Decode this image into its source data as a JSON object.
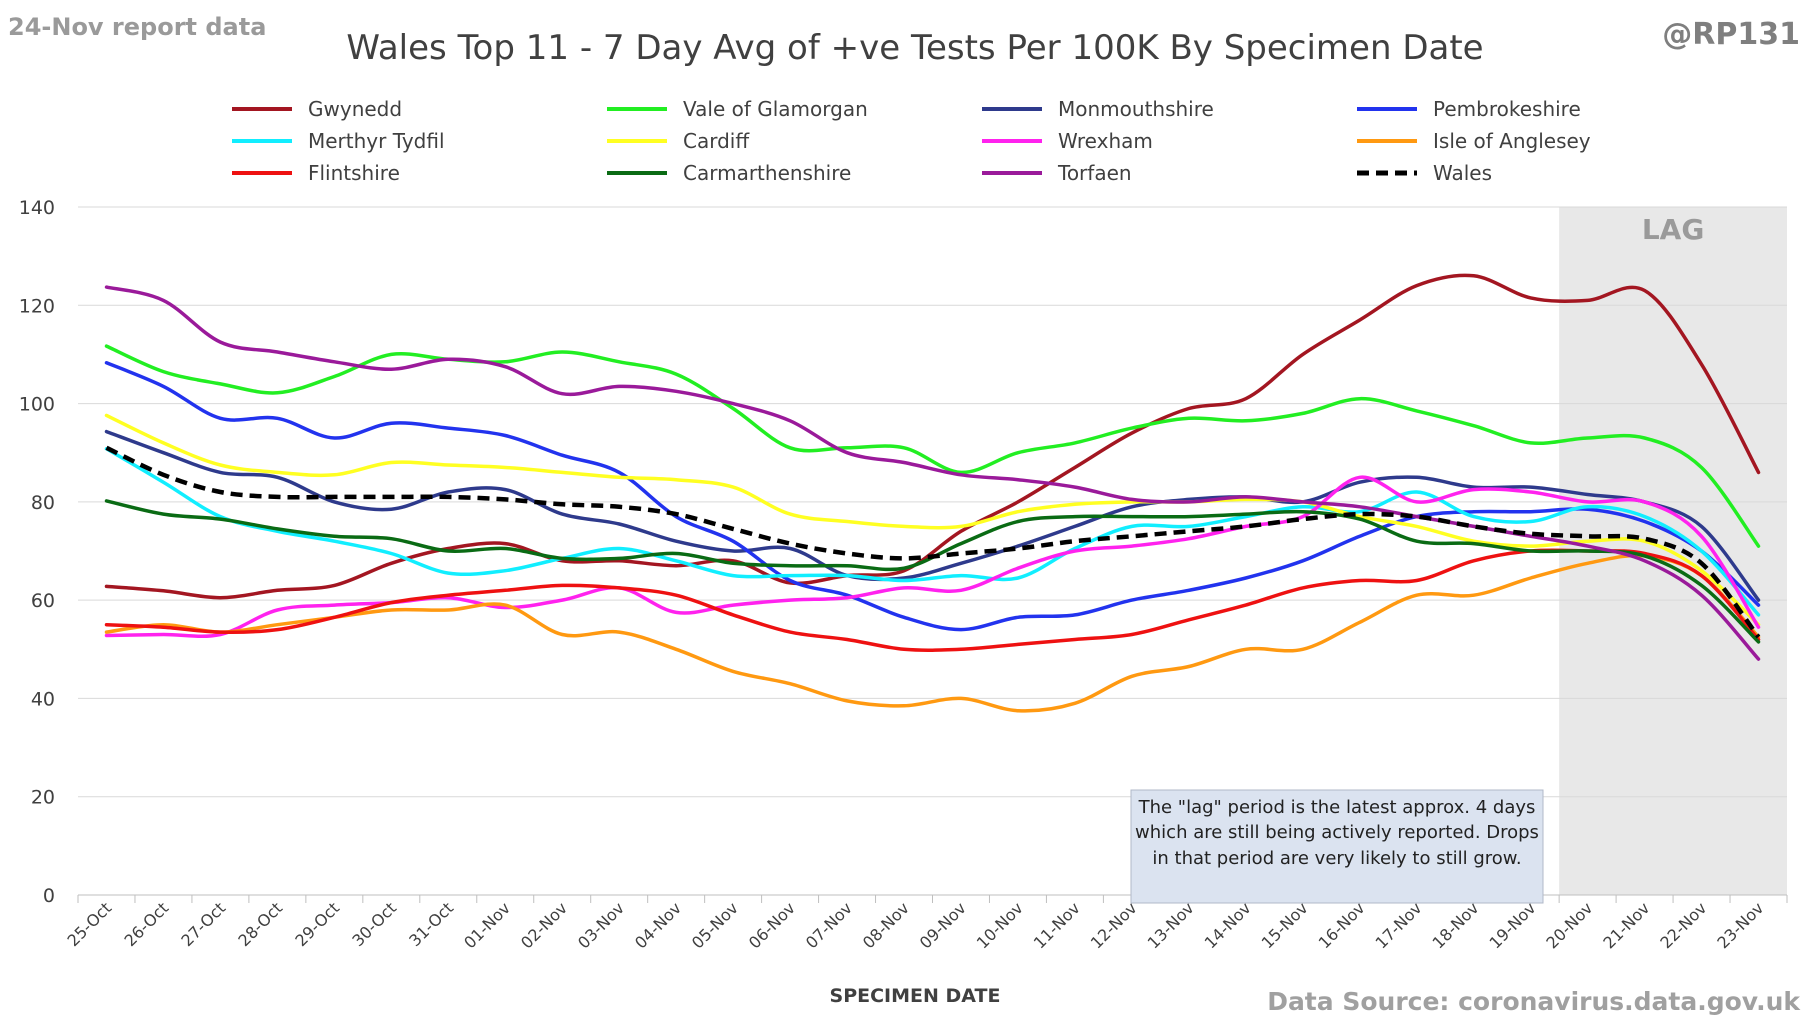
{
  "header": {
    "report_note": "24-Nov report data",
    "handle": "@RP131",
    "source": "Data Source: coronavirus.data.gov.uk"
  },
  "chart_data": {
    "type": "line",
    "title": "Wales Top 11 - 7 Day Avg of +ve Tests Per 100K By Specimen Date",
    "xlabel": "SPECIMEN DATE",
    "ylabel": "",
    "ylim": [
      0,
      140
    ],
    "yticks": [
      0,
      20,
      40,
      60,
      80,
      100,
      120,
      140
    ],
    "grid": true,
    "legend_position": "top",
    "categories": [
      "25-Oct",
      "26-Oct",
      "27-Oct",
      "28-Oct",
      "29-Oct",
      "30-Oct",
      "31-Oct",
      "01-Nov",
      "02-Nov",
      "03-Nov",
      "04-Nov",
      "05-Nov",
      "06-Nov",
      "07-Nov",
      "08-Nov",
      "09-Nov",
      "10-Nov",
      "11-Nov",
      "12-Nov",
      "13-Nov",
      "14-Nov",
      "15-Nov",
      "16-Nov",
      "17-Nov",
      "18-Nov",
      "19-Nov",
      "20-Nov",
      "21-Nov",
      "22-Nov",
      "23-Nov"
    ],
    "lag": {
      "label": "LAG",
      "start": "20-Nov",
      "end": "23-Nov"
    },
    "annotation": {
      "lines": [
        "The \"lag\" period is the latest approx. 4 days",
        "which are still being actively reported.  Drops",
        "in that period are very likely to still grow."
      ]
    },
    "series": [
      {
        "name": "Gwynedd",
        "color": "#a31621",
        "dashed": false,
        "values": [
          62.8,
          61.9,
          60.5,
          62.0,
          63.0,
          67.5,
          70.5,
          71.5,
          68.0,
          68.0,
          67.0,
          68.0,
          63.5,
          65.0,
          66.0,
          74.0,
          80.0,
          87.0,
          94.0,
          99.0,
          101.0,
          110.0,
          117.0,
          124.0,
          126.0,
          121.5,
          121.0,
          123.0,
          108.0,
          86.0
        ]
      },
      {
        "name": "Vale of Glamorgan",
        "color": "#22ee22",
        "dashed": false,
        "values": [
          111.7,
          106.5,
          104.0,
          102.2,
          105.5,
          110.0,
          109.0,
          108.5,
          110.5,
          108.5,
          106.0,
          99.0,
          91.0,
          91.0,
          91.0,
          86.0,
          90.0,
          92.0,
          95.0,
          97.0,
          96.5,
          98.0,
          101.0,
          98.5,
          95.5,
          92.0,
          93.0,
          93.0,
          87.0,
          71.0
        ]
      },
      {
        "name": "Monmouthshire",
        "color": "#2e3a8c",
        "dashed": false,
        "values": [
          94.3,
          90.0,
          86.0,
          85.0,
          80.0,
          78.5,
          82.0,
          82.5,
          77.5,
          75.5,
          72.0,
          70.0,
          70.5,
          65.0,
          64.5,
          67.5,
          71.0,
          75.0,
          79.0,
          80.5,
          81.0,
          80.0,
          84.0,
          85.0,
          83.0,
          83.0,
          81.5,
          80.0,
          75.0,
          60.0
        ]
      },
      {
        "name": "Pembrokeshire",
        "color": "#2233ee",
        "dashed": false,
        "values": [
          108.3,
          103.5,
          97.0,
          97.0,
          93.0,
          96.0,
          95.0,
          93.5,
          89.5,
          86.0,
          77.0,
          72.0,
          64.0,
          61.0,
          56.5,
          54.0,
          56.5,
          57.0,
          60.0,
          62.0,
          64.5,
          68.0,
          73.0,
          77.0,
          78.0,
          78.0,
          78.5,
          76.0,
          70.0,
          59.0
        ]
      },
      {
        "name": "Merthyr Tydfil",
        "color": "#11eeff",
        "dashed": false,
        "values": [
          90.8,
          84.0,
          77.0,
          74.0,
          72.0,
          69.5,
          65.5,
          66.0,
          68.5,
          70.5,
          68.0,
          65.0,
          65.0,
          65.0,
          64.0,
          65.0,
          64.5,
          70.5,
          75.0,
          75.0,
          77.0,
          79.0,
          78.0,
          82.0,
          77.0,
          76.0,
          79.0,
          77.0,
          70.0,
          57.0
        ]
      },
      {
        "name": "Cardiff",
        "color": "#ffff22",
        "dashed": false,
        "values": [
          97.6,
          92.0,
          87.5,
          86.0,
          85.5,
          88.0,
          87.5,
          87.0,
          86.0,
          85.0,
          84.5,
          83.0,
          77.5,
          76.0,
          75.0,
          75.0,
          78.0,
          79.5,
          80.0,
          80.0,
          80.5,
          80.0,
          77.0,
          75.0,
          72.0,
          71.0,
          72.0,
          72.0,
          66.0,
          55.0
        ]
      },
      {
        "name": "Wrexham",
        "color": "#ff22ee",
        "dashed": false,
        "values": [
          52.8,
          53.0,
          53.0,
          58.0,
          59.0,
          59.5,
          60.5,
          58.5,
          60.0,
          62.5,
          57.5,
          59.0,
          60.0,
          60.5,
          62.5,
          62.0,
          66.5,
          70.0,
          71.0,
          72.5,
          75.0,
          77.0,
          85.0,
          80.0,
          82.5,
          82.0,
          80.0,
          80.0,
          73.0,
          54.5
        ]
      },
      {
        "name": "Isle of Anglesey",
        "color": "#ff9911",
        "dashed": false,
        "values": [
          53.5,
          55.0,
          53.5,
          55.0,
          56.5,
          58.0,
          58.0,
          59.0,
          53.0,
          53.5,
          50.0,
          45.5,
          43.0,
          39.5,
          38.5,
          40.0,
          37.5,
          39.0,
          44.5,
          46.5,
          50.0,
          50.0,
          55.5,
          61.0,
          61.0,
          64.5,
          67.5,
          69.0,
          65.0,
          52.5
        ]
      },
      {
        "name": "Flintshire",
        "color": "#ee1111",
        "dashed": false,
        "values": [
          55.0,
          54.5,
          53.5,
          54.0,
          56.5,
          59.5,
          61.0,
          62.0,
          63.0,
          62.5,
          61.0,
          57.0,
          53.5,
          52.0,
          50.0,
          50.0,
          51.0,
          52.0,
          53.0,
          56.0,
          59.0,
          62.5,
          64.0,
          64.0,
          68.0,
          70.0,
          70.0,
          69.5,
          65.0,
          52.0
        ]
      },
      {
        "name": "Carmarthenshire",
        "color": "#0a6b14",
        "dashed": false,
        "values": [
          80.2,
          77.5,
          76.5,
          74.5,
          73.0,
          72.5,
          70.0,
          70.5,
          68.5,
          68.5,
          69.5,
          67.5,
          67.0,
          67.0,
          66.5,
          71.5,
          76.0,
          77.0,
          77.0,
          77.0,
          77.5,
          78.0,
          76.5,
          72.0,
          71.5,
          70.0,
          70.0,
          69.0,
          63.0,
          51.5
        ]
      },
      {
        "name": "Torfaen",
        "color": "#9a1a9a",
        "dashed": false,
        "values": [
          123.7,
          121.0,
          112.5,
          110.5,
          108.5,
          107.0,
          109.0,
          107.5,
          102.0,
          103.5,
          102.5,
          100.0,
          96.5,
          90.0,
          88.0,
          85.5,
          84.5,
          83.0,
          80.5,
          80.0,
          81.0,
          80.0,
          79.0,
          77.0,
          75.0,
          73.0,
          71.0,
          68.0,
          61.0,
          48.0
        ]
      },
      {
        "name": "Wales",
        "color": "#000000",
        "dashed": true,
        "values": [
          91.0,
          85.5,
          82.0,
          81.0,
          81.0,
          81.0,
          81.0,
          80.5,
          79.5,
          79.0,
          77.5,
          74.5,
          71.5,
          69.5,
          68.5,
          69.5,
          70.5,
          72.0,
          73.0,
          74.0,
          75.0,
          76.5,
          77.5,
          77.0,
          75.0,
          73.5,
          73.0,
          72.5,
          67.5,
          52.5
        ]
      }
    ]
  }
}
